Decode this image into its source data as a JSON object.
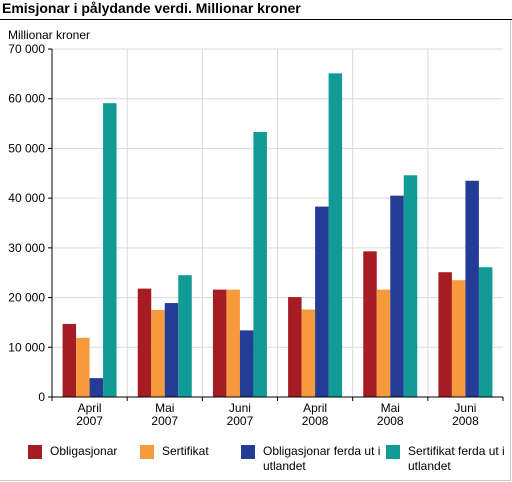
{
  "title": "Emisjonar i pålydande verdi. Millionar kroner",
  "chart_data": {
    "type": "bar",
    "ylabel": "Millionar kroner",
    "xlabel": "",
    "ylim": [
      0,
      70000
    ],
    "yticks": [
      0,
      10000,
      20000,
      30000,
      40000,
      50000,
      60000,
      70000
    ],
    "ytick_labels": [
      "0",
      "10 000",
      "20 000",
      "30 000",
      "40 000",
      "50 000",
      "60 000",
      "70 000"
    ],
    "categories": [
      [
        "April",
        "2007"
      ],
      [
        "Mai",
        "2007"
      ],
      [
        "Juni",
        "2007"
      ],
      [
        "April",
        "2008"
      ],
      [
        "Mai",
        "2008"
      ],
      [
        "Juni",
        "2008"
      ]
    ],
    "grid": "vertical separators between category groups",
    "legend_position": "bottom",
    "series": [
      {
        "name": "Obligasjonar",
        "color": "#a51d23",
        "values": [
          14700,
          21800,
          21600,
          20100,
          29300,
          25100
        ]
      },
      {
        "name": "Sertifikat",
        "color": "#f7993d",
        "values": [
          11900,
          17500,
          21600,
          17600,
          21600,
          23500
        ]
      },
      {
        "name": "Obligasjonar ferda ut i utlandet",
        "color": "#253c96",
        "values": [
          3800,
          18900,
          13400,
          38300,
          40500,
          43500
        ]
      },
      {
        "name": "Sertifikat ferda ut i utlandet",
        "color": "#119b96",
        "values": [
          59100,
          24500,
          53300,
          65100,
          44600,
          26100
        ]
      }
    ]
  },
  "legend": [
    {
      "label": "Obligasjonar",
      "color": "#a51d23"
    },
    {
      "label": "Sertifikat",
      "color": "#f7993d"
    },
    {
      "label": "Obligasjonar ferda ut i utlandet",
      "color": "#253c96"
    },
    {
      "label": "Sertifikat ferda ut i utlandet",
      "color": "#119b96"
    }
  ]
}
